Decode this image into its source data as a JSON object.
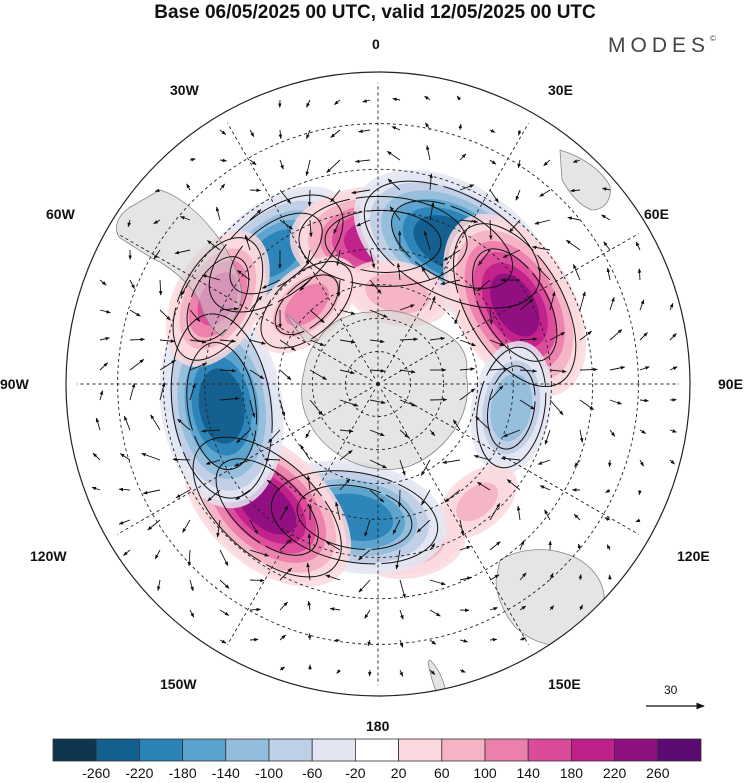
{
  "title": "Base 06/05/2025 00 UTC, valid 12/05/2025 00 UTC",
  "brand": "MODES",
  "brand_mark": "©",
  "projection": "south-polar-stereographic",
  "longitude_labels": [
    {
      "id": "0",
      "text": "0"
    },
    {
      "id": "30e",
      "text": "30E"
    },
    {
      "id": "60e",
      "text": "60E"
    },
    {
      "id": "90e",
      "text": "90E"
    },
    {
      "id": "120e",
      "text": "120E"
    },
    {
      "id": "150e",
      "text": "150E"
    },
    {
      "id": "180",
      "text": "180"
    },
    {
      "id": "150w",
      "text": "150W"
    },
    {
      "id": "120w",
      "text": "120W"
    },
    {
      "id": "90w",
      "text": "90W"
    },
    {
      "id": "60w",
      "text": "60W"
    },
    {
      "id": "30w",
      "text": "30W"
    }
  ],
  "reference_vector": {
    "value": "30"
  },
  "colorbar": {
    "ticks": [
      "-260",
      "-220",
      "-180",
      "-140",
      "-100",
      "-60",
      "-20",
      "20",
      "60",
      "100",
      "140",
      "180",
      "220",
      "260"
    ],
    "colors": [
      "#0d3550",
      "#135f8e",
      "#2b84b8",
      "#5aa2ce",
      "#93bddc",
      "#bfcfe6",
      "#e3e6f2",
      "#ffffff",
      "#fbd9de",
      "#f5b3c4",
      "#ec80ad",
      "#dc4a9a",
      "#c0208a",
      "#8e0f80",
      "#5a0a70"
    ]
  },
  "anomaly_centers": [
    {
      "sign": "negative",
      "value": -200,
      "lat": -42,
      "lon": -38
    },
    {
      "sign": "positive",
      "value": 220,
      "lat": -48,
      "lon": 2
    },
    {
      "sign": "negative",
      "value": -260,
      "lat": -44,
      "lon": 28
    },
    {
      "sign": "positive",
      "value": 240,
      "lat": -44,
      "lon": 60
    },
    {
      "sign": "negative",
      "value": -140,
      "lat": -50,
      "lon": 100
    },
    {
      "sign": "positive",
      "value": 80,
      "lat": -45,
      "lon": 140
    },
    {
      "sign": "positive",
      "value": 100,
      "lat": -42,
      "lon": 168
    },
    {
      "sign": "negative",
      "value": -220,
      "lat": -50,
      "lon": -170
    },
    {
      "sign": "positive",
      "value": 240,
      "lat": -42,
      "lon": -138
    },
    {
      "sign": "negative",
      "value": -250,
      "lat": -44,
      "lon": -98
    },
    {
      "sign": "positive",
      "value": 160,
      "lat": -38,
      "lon": -62
    },
    {
      "sign": "positive",
      "value": 120,
      "lat": -58,
      "lon": -42
    },
    {
      "sign": "positive",
      "value": 100,
      "lat": -62,
      "lon": 12
    }
  ]
}
